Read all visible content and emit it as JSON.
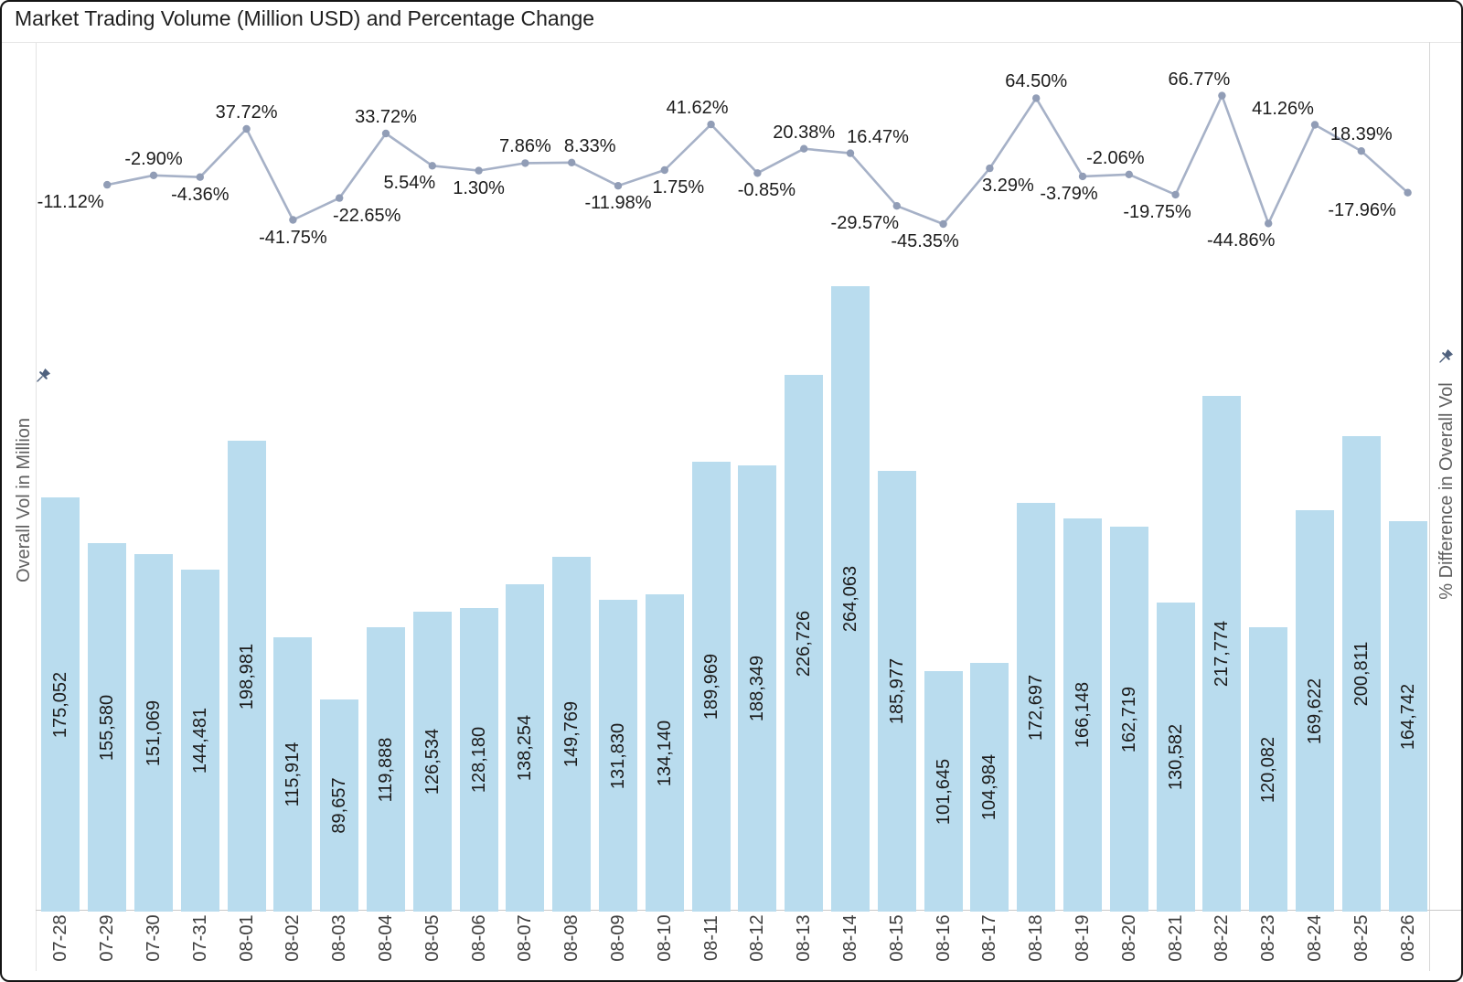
{
  "chart": {
    "title": "Market Trading Volume (Million USD) and Percentage Change",
    "left_axis": {
      "title": "Overall Vol in Million",
      "pin_icon": "pushpin-icon"
    },
    "right_axis": {
      "title": "% Difference in Overall Vol",
      "pin_icon": "pushpin-icon"
    },
    "colors": {
      "bar": "#b9dcee",
      "line": "#a6b1c7",
      "marker": "#919db6",
      "mark_label": "#1c1c1c",
      "tick_label": "#3e3e3e",
      "axis_title": "#606060",
      "pin": "#4f617e",
      "plot_border": "#dcdcdc"
    }
  },
  "chart_data": {
    "type": "bar+line",
    "title": "Market Trading Volume (Million USD) and Percentage Change",
    "xlabel": "",
    "ylabel_left": "Overall Vol in Million",
    "ylabel_right": "% Difference in Overall Vol",
    "grid": false,
    "legend": "none",
    "x_tick_rotation": 90,
    "categories": [
      "07-28",
      "07-29",
      "07-30",
      "07-31",
      "08-01",
      "08-02",
      "08-03",
      "08-04",
      "08-05",
      "08-06",
      "08-07",
      "08-08",
      "08-09",
      "08-10",
      "08-11",
      "08-12",
      "08-13",
      "08-14",
      "08-15",
      "08-16",
      "08-17",
      "08-18",
      "08-19",
      "08-20",
      "08-21",
      "08-22",
      "08-23",
      "08-24",
      "08-25",
      "08-26"
    ],
    "series": [
      {
        "name": "Overall Vol in Million",
        "type": "bar",
        "axis": "left",
        "values": [
          175052,
          155580,
          151069,
          144481,
          198981,
          115914,
          89657,
          119888,
          126534,
          128180,
          138254,
          149769,
          131830,
          134140,
          189969,
          188349,
          226726,
          264063,
          185977,
          101645,
          104984,
          172697,
          166148,
          162719,
          130582,
          217774,
          120082,
          169622,
          200811,
          164742
        ],
        "labels": [
          "175,052",
          "155,580",
          "151,069",
          "144,481",
          "198,981",
          "115,914",
          "89,657",
          "119,888",
          "126,534",
          "128,180",
          "138,254",
          "149,769",
          "131,830",
          "134,140",
          "189,969",
          "188,349",
          "226,726",
          "264,063",
          "185,977",
          "101,645",
          "104,984",
          "172,697",
          "166,148",
          "162,719",
          "130,582",
          "217,774",
          "120,082",
          "169,622",
          "200,811",
          "164,742"
        ]
      },
      {
        "name": "% Difference in Overall Vol",
        "type": "line",
        "axis": "right",
        "values": [
          null,
          -11.12,
          -2.9,
          -4.36,
          37.72,
          -41.75,
          -22.65,
          33.72,
          5.54,
          1.3,
          7.86,
          8.33,
          -11.98,
          1.75,
          41.62,
          -0.85,
          20.38,
          16.47,
          -29.57,
          -45.35,
          3.29,
          64.5,
          -3.79,
          -2.06,
          -19.75,
          66.77,
          -44.86,
          41.26,
          18.39,
          -17.96
        ],
        "labels": [
          null,
          "-11.12%",
          "-2.90%",
          "-4.36%",
          "37.72%",
          "-41.75%",
          "-22.65%",
          "33.72%",
          "5.54%",
          "1.30%",
          "7.86%",
          "8.33%",
          "-11.98%",
          "1.75%",
          "41.62%",
          "-0.85%",
          "20.38%",
          "16.47%",
          "-29.57%",
          "-45.35%",
          "3.29%",
          "64.50%",
          "-3.79%",
          "-2.06%",
          "-19.75%",
          "66.77%",
          "-44.86%",
          "41.26%",
          "18.39%",
          "-17.96%"
        ],
        "label_side": [
          null,
          "below",
          "above",
          "below",
          "above",
          "below",
          "below",
          "above",
          "below",
          "below",
          "above",
          "above",
          "below",
          "below",
          "above",
          "below",
          "above",
          "above",
          "below",
          "below",
          "below",
          "above",
          "below",
          "above",
          "below",
          "above",
          "below",
          "above",
          "above",
          "below"
        ],
        "label_dx": [
          null,
          -40,
          0,
          0,
          0,
          0,
          30,
          0,
          -25,
          0,
          0,
          20,
          0,
          15,
          -15,
          10,
          0,
          30,
          -35,
          -20,
          20,
          0,
          -15,
          -15,
          -20,
          -25,
          -30,
          -35,
          0,
          -50
        ]
      }
    ]
  }
}
